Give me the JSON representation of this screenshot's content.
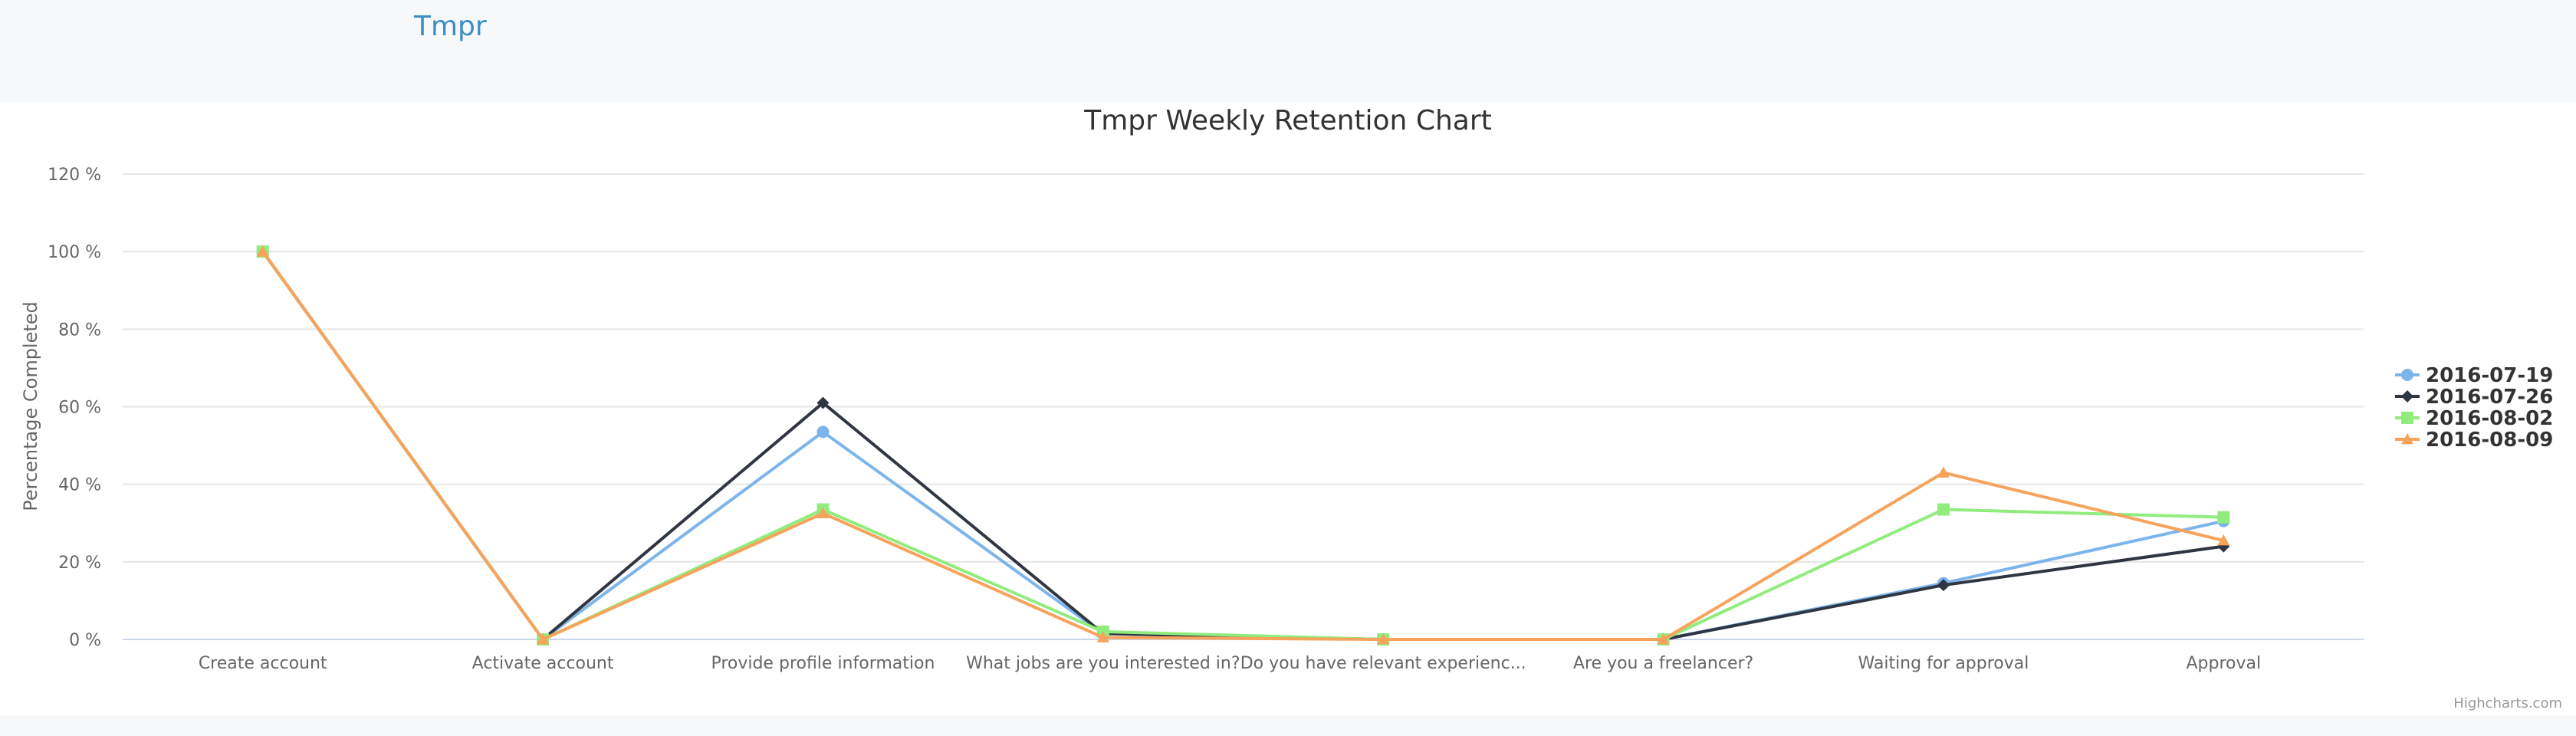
{
  "header": {
    "brand": "Tmpr"
  },
  "chart_data": {
    "type": "line",
    "title": "Tmpr Weekly Retention Chart",
    "ylabel": "Percentage Completed",
    "xlabel": "",
    "ylim": [
      0,
      120
    ],
    "yticks": [
      0,
      20,
      40,
      60,
      80,
      100,
      120
    ],
    "ytick_labels": [
      "0 %",
      "20 %",
      "40 %",
      "60 %",
      "80 %",
      "100 %",
      "120 %"
    ],
    "grid": true,
    "legend_position": "right",
    "categories": [
      "Create account",
      "Activate account",
      "Provide profile information",
      "What jobs are you interested in?",
      "Do you have relevant experienc...",
      "Are you a freelancer?",
      "Waiting for approval",
      "Approval"
    ],
    "series": [
      {
        "name": "2016-07-19",
        "color": "#7cb5ec",
        "marker": "circle",
        "values": [
          100,
          0,
          53.5,
          1.5,
          0,
          0,
          14.5,
          30.5
        ]
      },
      {
        "name": "2016-07-26",
        "color": "#2f3541",
        "marker": "diamond",
        "values": [
          100,
          0,
          61,
          1.5,
          0,
          0,
          14,
          24
        ]
      },
      {
        "name": "2016-08-02",
        "color": "#90ed7d",
        "marker": "square",
        "values": [
          100,
          0,
          33.5,
          2,
          0,
          0,
          33.5,
          31.5
        ]
      },
      {
        "name": "2016-08-09",
        "color": "#f7a35c",
        "marker": "triangle",
        "values": [
          100,
          0,
          32.5,
          0.5,
          0,
          0,
          43,
          25.5
        ]
      }
    ],
    "credit": "Highcharts.com"
  }
}
